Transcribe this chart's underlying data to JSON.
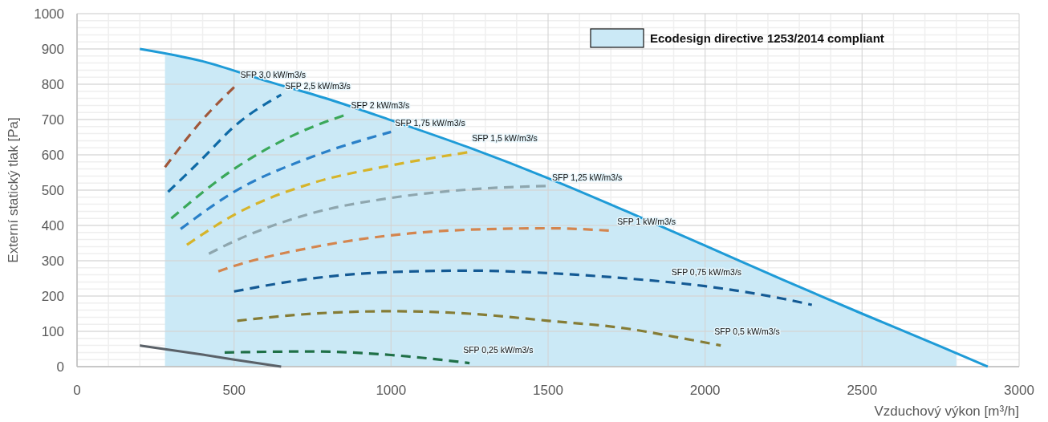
{
  "chart_data": {
    "type": "line",
    "xlabel": "Vzduchový výkon [m³/h]",
    "ylabel": "Externí statický tlak [Pa]",
    "xlim": [
      0,
      3000
    ],
    "ylim": [
      0,
      1000
    ],
    "xticks": [
      0,
      500,
      1000,
      1500,
      2000,
      2500,
      3000
    ],
    "yticks": [
      0,
      100,
      200,
      300,
      400,
      500,
      600,
      700,
      800,
      900,
      1000
    ],
    "grid": true,
    "legend": "top right",
    "marker": "none",
    "series": [
      {
        "type": "area",
        "name": "Ecodesign directive 1253/2014 compliant",
        "color": "#cbe9f6",
        "x": [
          280,
          400,
          600,
          800,
          1000,
          1250,
          1500,
          1750,
          2000,
          2250,
          2500,
          2750,
          2800
        ],
        "values": [
          883,
          865,
          810,
          758,
          698,
          620,
          534,
          440,
          343,
          245,
          150,
          57,
          38
        ]
      },
      {
        "color": "#1e9bd7",
        "line_style": "solid",
        "x": [
          200,
          400,
          600,
          800,
          1000,
          1250,
          1500,
          1750,
          2000,
          2250,
          2500,
          2750,
          2900
        ],
        "values": [
          900,
          865,
          810,
          758,
          698,
          620,
          534,
          440,
          343,
          245,
          150,
          57,
          0
        ]
      },
      {
        "color": "#5a6168",
        "line_style": "solid",
        "x": [
          200,
          400,
          500,
          650
        ],
        "values": [
          60,
          34,
          20,
          0
        ]
      },
      {
        "name": "SFP 3,0 kW/m3/s",
        "color": "#a0573a",
        "line_style": "dashed",
        "x": [
          280,
          400,
          510
        ],
        "values": [
          565,
          700,
          800
        ]
      },
      {
        "name": "SFP 2,5 kW/m3/s",
        "color": "#0f6aa6",
        "line_style": "dashed",
        "x": [
          290,
          400,
          500,
          650
        ],
        "values": [
          495,
          590,
          680,
          770
        ]
      },
      {
        "name": "SFP 2 kW/m3/s",
        "color": "#3aa85a",
        "line_style": "dashed",
        "x": [
          300,
          500,
          700,
          860
        ],
        "values": [
          420,
          560,
          660,
          715
        ]
      },
      {
        "name": "SFP 1,75 kW/m3/s",
        "color": "#2a80c8",
        "line_style": "dashed",
        "x": [
          330,
          500,
          750,
          1000
        ],
        "values": [
          390,
          495,
          595,
          665
        ]
      },
      {
        "name": "SFP 1,5 kW/m3/s",
        "color": "#d6b42a",
        "line_style": "dashed",
        "x": [
          350,
          500,
          750,
          1000,
          1250
        ],
        "values": [
          345,
          430,
          520,
          570,
          608
        ]
      },
      {
        "name": "SFP 1,25 kW/m3/s",
        "color": "#8ea6ae",
        "line_style": "dashed",
        "x": [
          420,
          500,
          750,
          1000,
          1250,
          1500
        ],
        "values": [
          320,
          355,
          435,
          478,
          502,
          512
        ]
      },
      {
        "name": "SFP 1 kW/m3/s",
        "color": "#d4854e",
        "line_style": "dashed",
        "x": [
          450,
          500,
          750,
          1000,
          1250,
          1500,
          1700
        ],
        "values": [
          270,
          285,
          338,
          372,
          388,
          392,
          385
        ]
      },
      {
        "name": "SFP 0,75 kW/m3/s",
        "color": "#145a94",
        "line_style": "dashed",
        "x": [
          500,
          750,
          1000,
          1250,
          1500,
          1750,
          2000,
          2250,
          2340
        ],
        "values": [
          213,
          250,
          268,
          272,
          265,
          250,
          228,
          192,
          175
        ]
      },
      {
        "name": "SFP 0,5 kW/m3/s",
        "color": "#857c35",
        "line_style": "dashed",
        "x": [
          510,
          750,
          1000,
          1250,
          1500,
          1750,
          1900,
          2050
        ],
        "values": [
          130,
          150,
          157,
          150,
          130,
          108,
          85,
          60
        ]
      },
      {
        "name": "SFP 0,25 kW/m3/s",
        "color": "#1f7047",
        "line_style": "dashed",
        "x": [
          470,
          600,
          750,
          1000,
          1100,
          1250
        ],
        "values": [
          40,
          42,
          43,
          33,
          25,
          10
        ]
      }
    ]
  }
}
